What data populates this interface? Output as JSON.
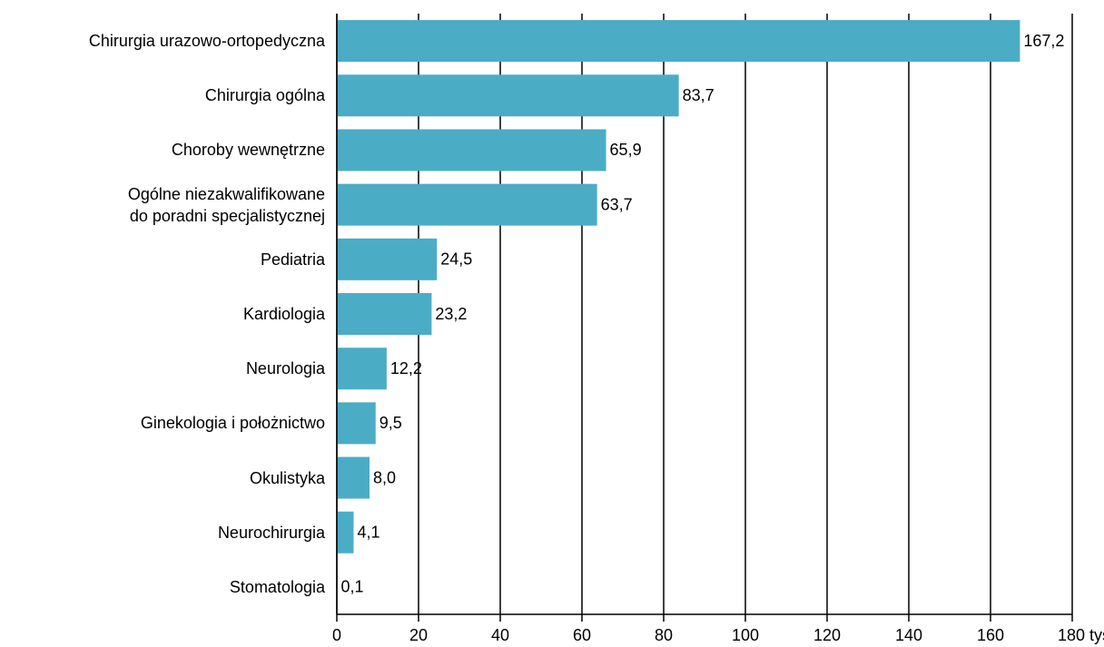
{
  "chart_data": {
    "type": "hbar",
    "categories": [
      "Chirurgia urazowo-ortopedyczna",
      "Chirurgia ogólna",
      "Choroby wewnętrzne",
      "Ogólne niezakwalifikowane\ndo poradni specjalistycznej",
      "Pediatria",
      "Kardiologia",
      "Neurologia",
      "Ginekologia i położnictwo",
      "Okulistyka",
      "Neurochirurgia",
      "Stomatologia"
    ],
    "values": [
      167.2,
      83.7,
      65.9,
      63.7,
      24.5,
      23.2,
      12.2,
      9.5,
      8.0,
      4.1,
      0.1
    ],
    "value_labels": [
      "167,2",
      "83,7",
      "65,9",
      "63,7",
      "24,5",
      "23,2",
      "12,2",
      "9,5",
      "8,0",
      "4,1",
      "0,1"
    ],
    "color": "#4bacc6",
    "xlim": [
      0,
      180
    ],
    "xticks": [
      0,
      20,
      40,
      60,
      80,
      100,
      120,
      140,
      160,
      {
        "value": 180,
        "label": "180 tys."
      }
    ],
    "grid": true
  }
}
